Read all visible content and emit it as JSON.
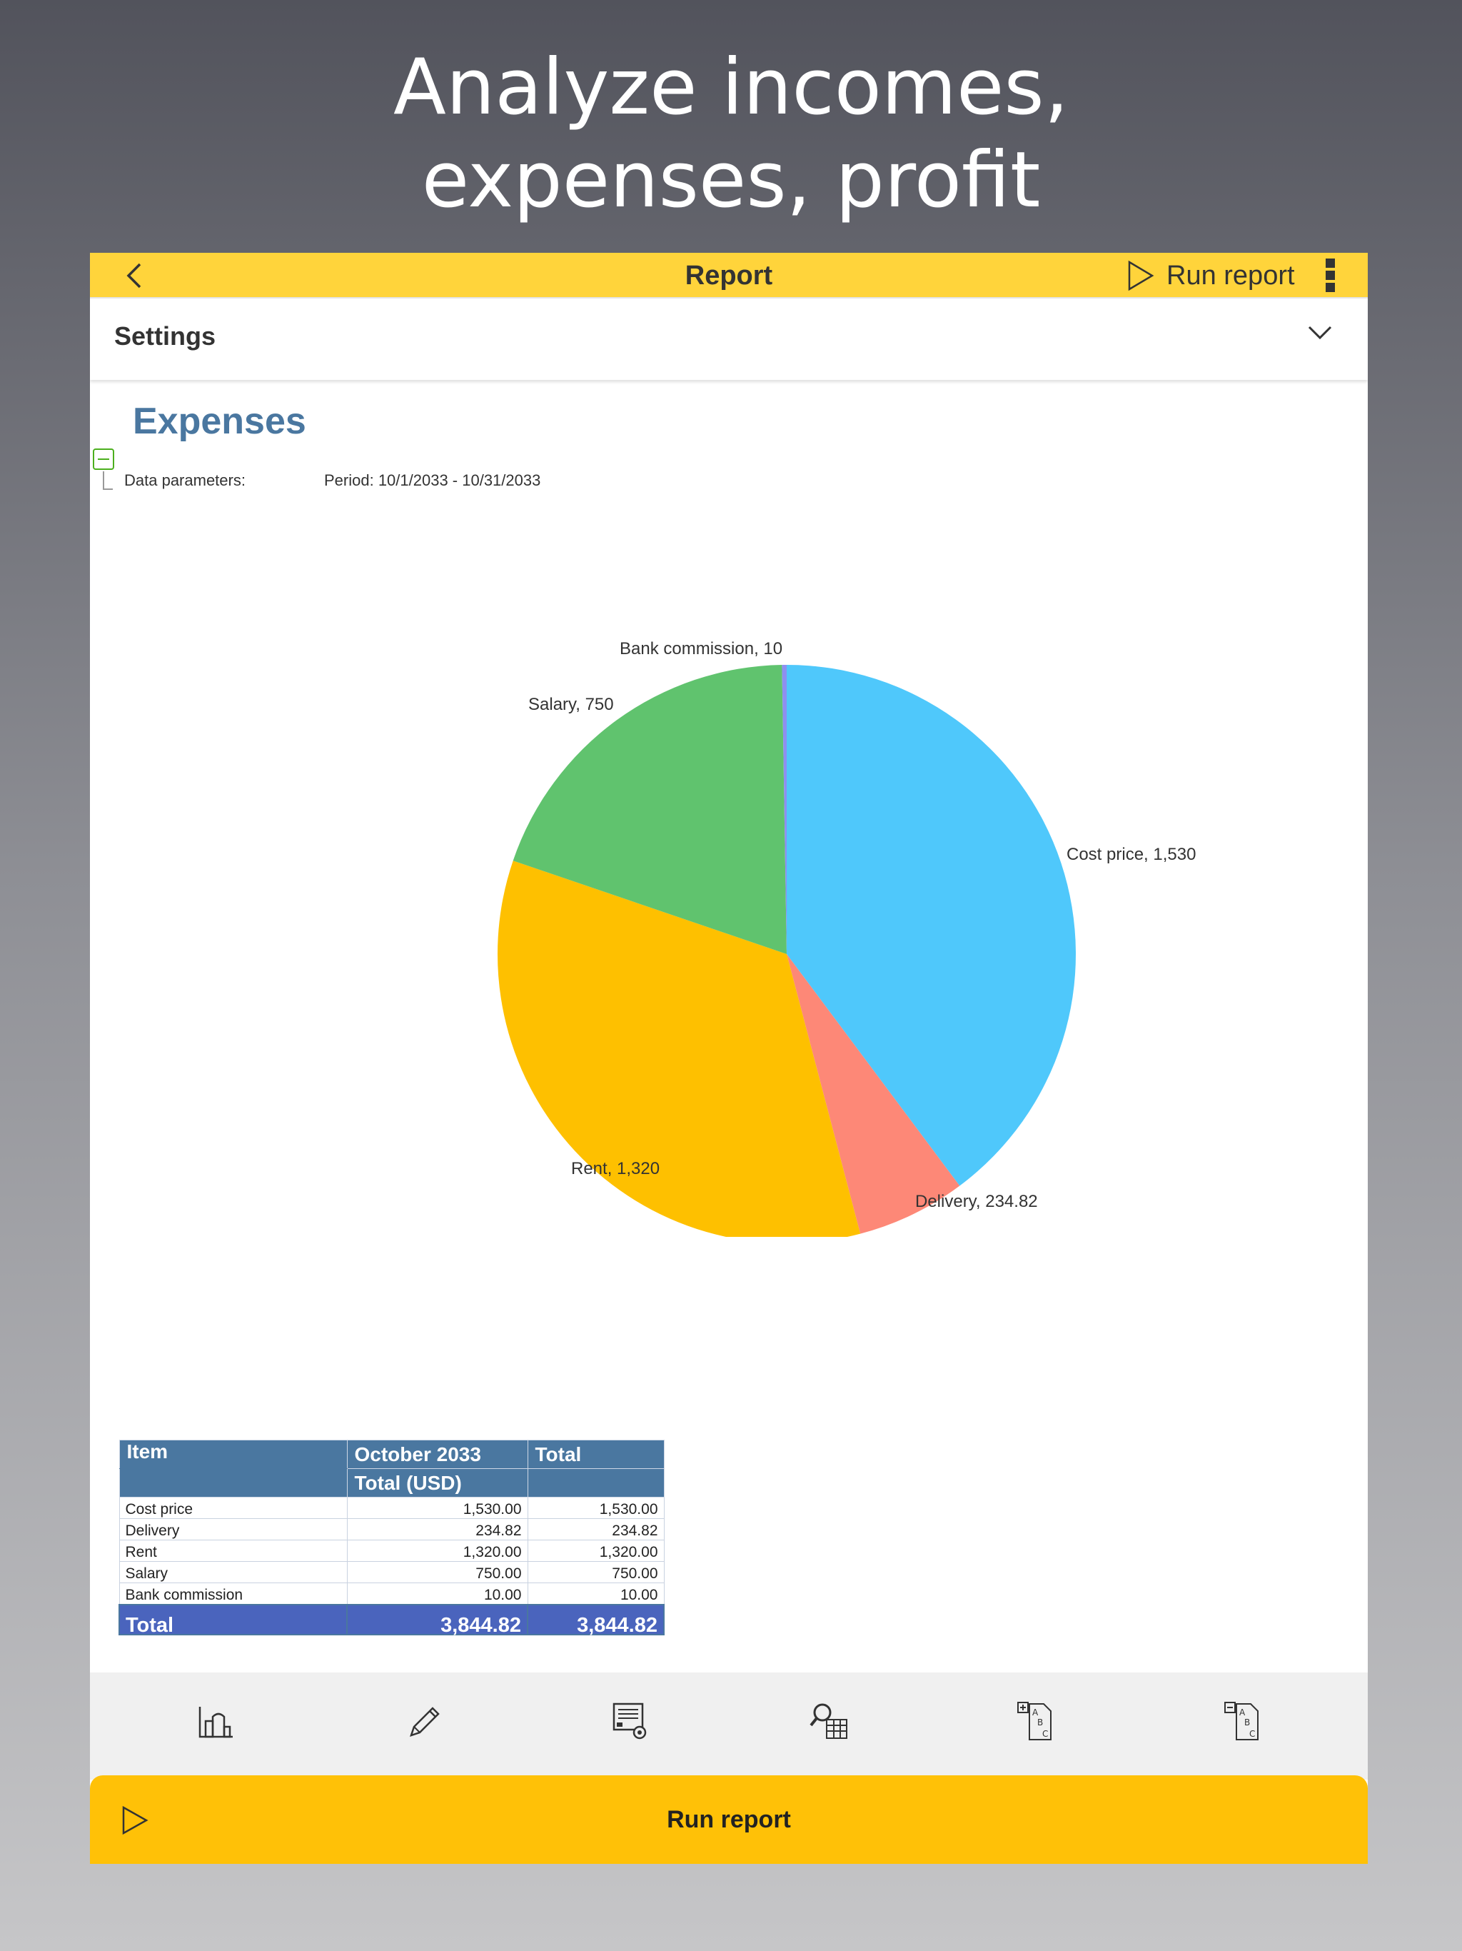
{
  "headline": {
    "line1": "Analyze incomes,",
    "line2": "expenses, profit"
  },
  "appbar": {
    "title": "Report",
    "run_label": "Run report"
  },
  "settings": {
    "label": "Settings"
  },
  "report": {
    "title": "Expenses",
    "params_label": "Data parameters:",
    "params_value": "Period: 10/1/2033 - 10/31/2033"
  },
  "chart_data": {
    "type": "pie",
    "title": "",
    "slices": [
      {
        "name": "Cost price",
        "value": 1530,
        "label": "Cost price, 1,530",
        "color": "#4fc8fb"
      },
      {
        "name": "Delivery",
        "value": 234.82,
        "label": "Delivery, 234.82",
        "color": "#fd8877"
      },
      {
        "name": "Rent",
        "value": 1320,
        "label": "Rent, 1,320",
        "color": "#fec000"
      },
      {
        "name": "Salary",
        "value": 750,
        "label": "Salary, 750",
        "color": "#60c36e"
      },
      {
        "name": "Bank commission",
        "value": 10,
        "label": "Bank commission, 10",
        "color": "#8e8ff0"
      }
    ]
  },
  "table": {
    "headers": {
      "item": "Item",
      "period": "October 2033",
      "total": "Total",
      "sub_period": "Total (USD)",
      "sub_total": ""
    },
    "rows": [
      {
        "item": "Cost price",
        "period": "1,530.00",
        "total": "1,530.00"
      },
      {
        "item": "Delivery",
        "period": "234.82",
        "total": "234.82"
      },
      {
        "item": "Rent",
        "period": "1,320.00",
        "total": "1,320.00"
      },
      {
        "item": "Salary",
        "period": "750.00",
        "total": "750.00"
      },
      {
        "item": "Bank commission",
        "period": "10.00",
        "total": "10.00"
      }
    ],
    "total_row": {
      "item": "Total",
      "period": "3,844.82",
      "total": "3,844.82"
    }
  },
  "toolbar": {
    "tools": [
      "chart-icon",
      "pencil-icon",
      "report-settings-icon",
      "search-table-icon",
      "expand-all-icon",
      "collapse-all-icon"
    ]
  },
  "run_button": {
    "label": "Run report"
  }
}
